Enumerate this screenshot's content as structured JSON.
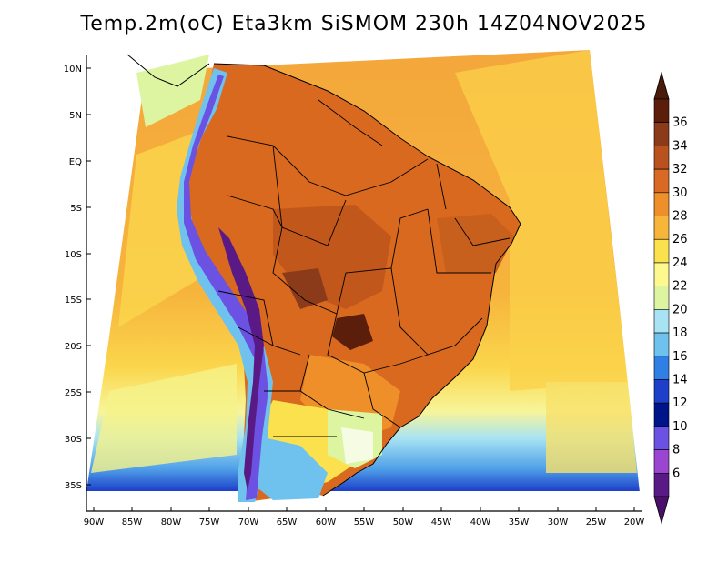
{
  "title": "Temp.2m(oC) Eta3km SiSMOM 230h 14Z04NOV2025",
  "map": {
    "variable": "2 m air temperature",
    "units": "oC",
    "lat_labels": [
      "10N",
      "5N",
      "EQ",
      "5S",
      "10S",
      "15S",
      "20S",
      "25S",
      "30S",
      "35S"
    ],
    "lon_labels": [
      "90W",
      "85W",
      "80W",
      "75W",
      "70W",
      "65W",
      "60W",
      "55W",
      "50W",
      "45W",
      "40W",
      "35W",
      "30W",
      "25W",
      "20W"
    ]
  },
  "colorbar": {
    "labels": [
      "36",
      "34",
      "32",
      "30",
      "28",
      "26",
      "24",
      "22",
      "20",
      "18",
      "16",
      "14",
      "12",
      "10",
      "8",
      "6"
    ],
    "colors": [
      "#5a1e0a",
      "#8b3a1a",
      "#b9521e",
      "#d86a23",
      "#ef8f2a",
      "#f7b63a",
      "#fbe14e",
      "#fdf98f",
      "#ddf5a0",
      "#a8e3f3",
      "#6fc2ee",
      "#2f7fe4",
      "#1d3fc9",
      "#00148a",
      "#6b52e2",
      "#9b46d2",
      "#5a1a86"
    ],
    "arrow_top_color": "#4a1a0a",
    "arrow_bottom_color": "#4a0f6a"
  },
  "colors": {
    "ocean_warm": "#f4a73b",
    "ocean_mid": "#fbd14a",
    "ocean_cool": "#e9f69a",
    "land_hot": "#d8691f",
    "andes": "#6e3ac6",
    "southern_ocean": "#6fc2ee"
  }
}
